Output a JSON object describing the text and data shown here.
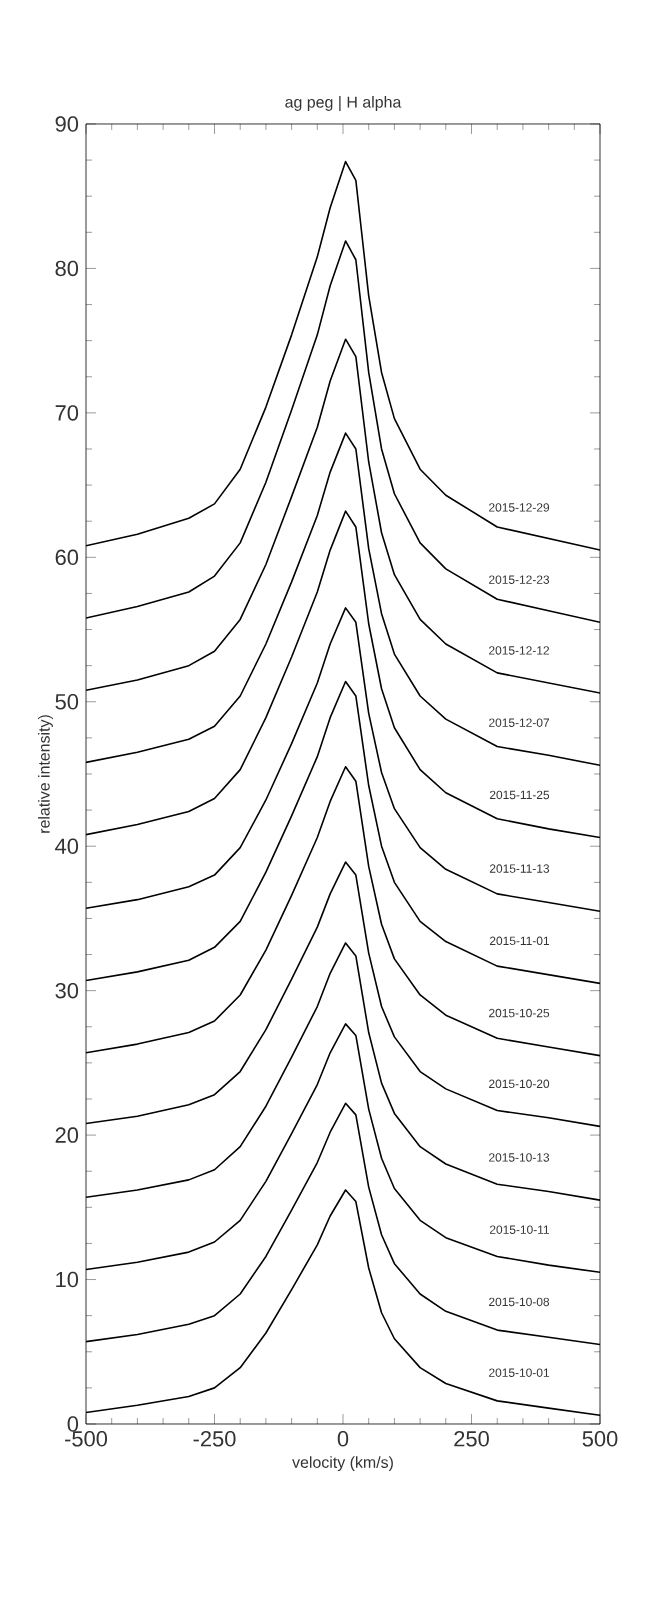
{
  "chart_data": {
    "type": "line",
    "title": "ag peg | H alpha",
    "xlabel": "velocity (km/s)",
    "ylabel": "relative intensity)",
    "xlim": [
      -500,
      500
    ],
    "ylim": [
      0,
      90
    ],
    "xticks": [
      -500,
      -250,
      0,
      250,
      500
    ],
    "yticks": [
      0,
      10,
      20,
      30,
      40,
      50,
      60,
      70,
      80,
      90
    ],
    "grid": false,
    "legend": false,
    "marker": "none",
    "line_style": "solid",
    "x": [
      -500,
      -400,
      -300,
      -250,
      -200,
      -150,
      -100,
      -50,
      -25,
      5,
      25,
      50,
      75,
      100,
      150,
      200,
      300,
      400,
      500
    ],
    "series": [
      {
        "name": "2015-10-01",
        "color": "#000000",
        "values": [
          0.8,
          1.3,
          1.9,
          2.5,
          3.9,
          6.3,
          9.3,
          12.4,
          14.4,
          16.2,
          15.4,
          10.8,
          7.7,
          5.9,
          3.9,
          2.8,
          1.6,
          1.1,
          0.6
        ]
      },
      {
        "name": "2015-10-08",
        "color": "#000000",
        "values": [
          5.7,
          6.2,
          6.9,
          7.5,
          9.0,
          11.6,
          14.8,
          18.1,
          20.2,
          22.2,
          21.4,
          16.4,
          13.1,
          11.1,
          9.0,
          7.8,
          6.5,
          6.0,
          5.5
        ]
      },
      {
        "name": "2015-10-11",
        "color": "#000000",
        "values": [
          10.7,
          11.2,
          11.9,
          12.6,
          14.1,
          16.8,
          20.1,
          23.5,
          25.7,
          27.7,
          26.9,
          21.8,
          18.4,
          16.3,
          14.1,
          12.9,
          11.6,
          11.0,
          10.5
        ]
      },
      {
        "name": "2015-10-13",
        "color": "#000000",
        "values": [
          15.7,
          16.2,
          16.9,
          17.6,
          19.2,
          22.0,
          25.4,
          28.9,
          31.2,
          33.3,
          32.4,
          27.1,
          23.6,
          21.5,
          19.2,
          18.0,
          16.6,
          16.1,
          15.5
        ]
      },
      {
        "name": "2015-10-20",
        "color": "#000000",
        "values": [
          20.8,
          21.3,
          22.1,
          22.8,
          24.4,
          27.3,
          30.8,
          34.4,
          36.7,
          38.9,
          38.0,
          32.6,
          28.9,
          26.8,
          24.4,
          23.2,
          21.7,
          21.2,
          20.6
        ]
      },
      {
        "name": "2015-10-25",
        "color": "#000000",
        "values": [
          25.7,
          26.3,
          27.1,
          27.9,
          29.7,
          32.8,
          36.6,
          40.6,
          43.1,
          45.5,
          44.5,
          38.6,
          34.6,
          32.2,
          29.7,
          28.3,
          26.7,
          26.1,
          25.5
        ]
      },
      {
        "name": "2015-11-01",
        "color": "#000000",
        "values": [
          30.7,
          31.3,
          32.1,
          33.0,
          34.8,
          38.2,
          42.1,
          46.2,
          48.9,
          51.4,
          50.4,
          44.2,
          40.0,
          37.5,
          34.8,
          33.4,
          31.7,
          31.1,
          30.5
        ]
      },
      {
        "name": "2015-11-13",
        "color": "#000000",
        "values": [
          35.7,
          36.3,
          37.2,
          38.0,
          39.9,
          43.2,
          47.1,
          51.3,
          54.0,
          56.5,
          55.5,
          49.2,
          45.1,
          42.6,
          39.9,
          38.4,
          36.7,
          36.1,
          35.5
        ]
      },
      {
        "name": "2015-11-25",
        "color": "#000000",
        "values": [
          40.8,
          41.5,
          42.4,
          43.3,
          45.3,
          48.9,
          53.1,
          57.6,
          60.5,
          63.2,
          62.1,
          55.4,
          50.9,
          48.2,
          45.3,
          43.7,
          41.9,
          41.2,
          40.6
        ]
      },
      {
        "name": "2015-12-07",
        "color": "#000000",
        "values": [
          45.8,
          46.5,
          47.4,
          48.3,
          50.4,
          54.0,
          58.3,
          62.9,
          65.9,
          68.6,
          67.5,
          60.6,
          56.1,
          53.3,
          50.4,
          48.8,
          46.9,
          46.3,
          45.6
        ]
      },
      {
        "name": "2015-12-12",
        "color": "#000000",
        "values": [
          50.8,
          51.5,
          52.5,
          53.5,
          55.7,
          59.5,
          64.2,
          69.0,
          72.2,
          75.1,
          73.9,
          66.6,
          61.7,
          58.8,
          55.7,
          54.0,
          52.0,
          51.3,
          50.6
        ]
      },
      {
        "name": "2015-12-23",
        "color": "#000000",
        "values": [
          55.8,
          56.6,
          57.6,
          58.7,
          61.0,
          65.2,
          70.2,
          75.4,
          78.8,
          81.9,
          80.6,
          72.8,
          67.5,
          64.4,
          61.0,
          59.2,
          57.1,
          56.3,
          55.5
        ]
      },
      {
        "name": "2015-12-29",
        "color": "#000000",
        "values": [
          60.8,
          61.6,
          62.7,
          63.7,
          66.1,
          70.4,
          75.4,
          80.8,
          84.2,
          87.4,
          86.1,
          78.1,
          72.8,
          69.6,
          66.1,
          64.3,
          62.1,
          61.3,
          60.5
        ]
      }
    ]
  }
}
